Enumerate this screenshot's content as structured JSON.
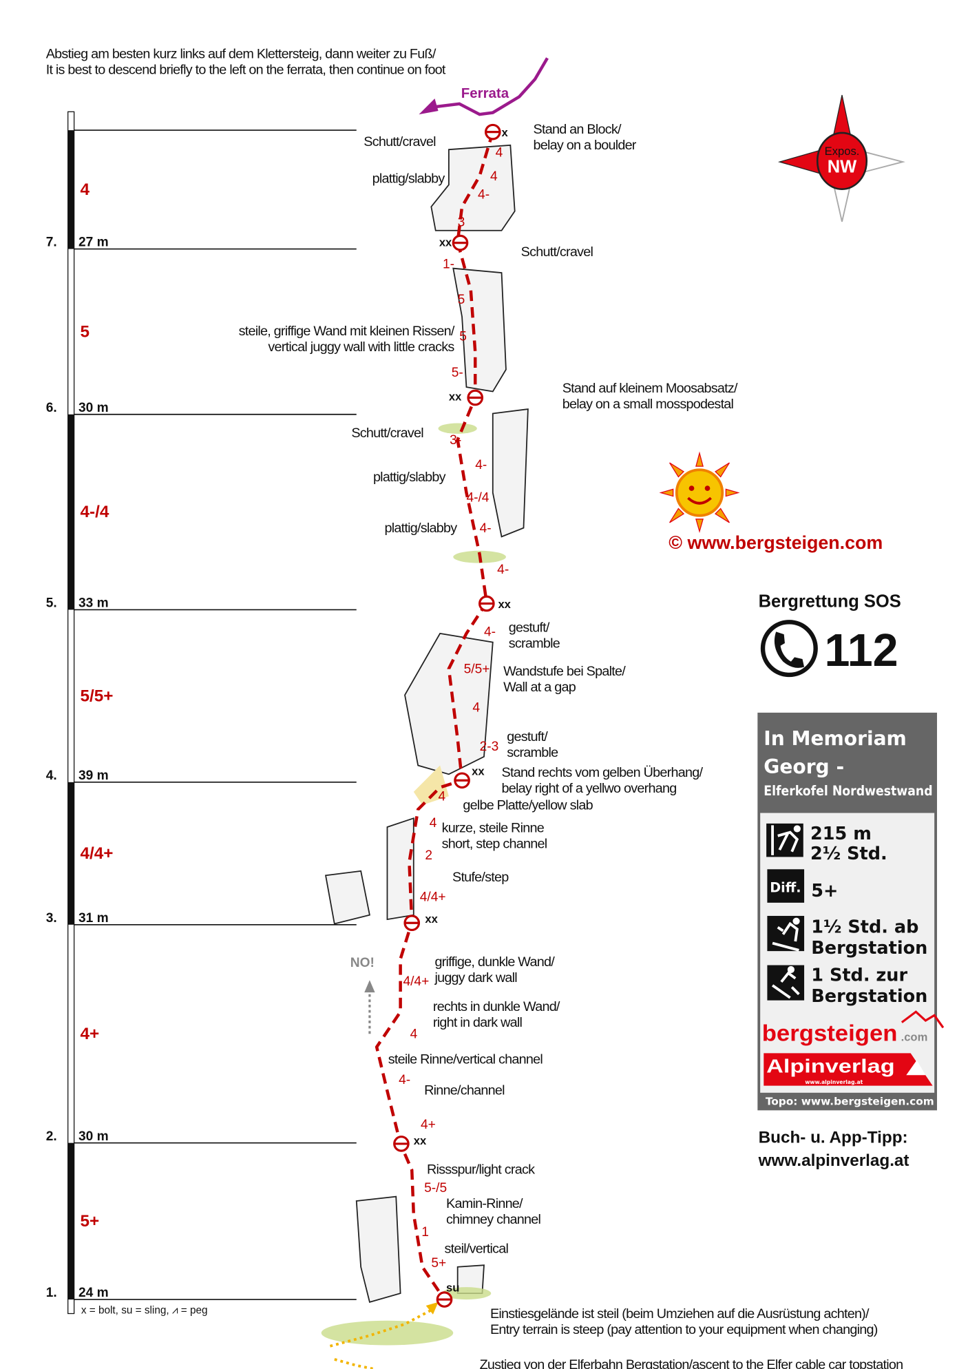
{
  "top_note": [
    "Abstieg am besten kurz links auf dem Klettersteig, dann weiter zu Fuß/",
    "It is best to descend briefly to the left on the ferrata, then continue on foot"
  ],
  "ferrata_label": "Ferrata",
  "colors": {
    "route": "#c00000",
    "ferrata": "#9b1a8c",
    "compass": "#e30613",
    "box_header": "#666666",
    "box_body": "#f0f0f0",
    "moss": "#c9dc8a",
    "approach": "#f2b400"
  },
  "pitches": [
    {
      "number": "7.",
      "length": "27 m",
      "grade": "4"
    },
    {
      "number": "6.",
      "length": "30 m",
      "grade": "5"
    },
    {
      "number": "5.",
      "length": "33 m",
      "grade": "4-/4"
    },
    {
      "number": "4.",
      "length": "39 m",
      "grade": "5/5+"
    },
    {
      "number": "3.",
      "length": "31 m",
      "grade": "4/4+"
    },
    {
      "number": "2.",
      "length": "30 m",
      "grade": "4+"
    },
    {
      "number": "1.",
      "length": "24 m",
      "grade": "5+"
    }
  ],
  "route_grades": [
    "4",
    "4",
    "4-",
    "3",
    "1-",
    "5",
    "5",
    "5-",
    "3-",
    "4-",
    "4-/4",
    "4-",
    "4-",
    "4-",
    "5/5+",
    "4",
    "2-3",
    "4",
    "4",
    "2",
    "4/4+",
    "4/4+",
    "4",
    "4-",
    "4+",
    "5-/5",
    "1",
    "5+"
  ],
  "belay_labels": [
    "x",
    "xx",
    "xx",
    "xx",
    "xx",
    "xx",
    "xx",
    "su"
  ],
  "annotations": [
    [
      "Schutt/cravel"
    ],
    [
      "plattig/slabby"
    ],
    [
      "Stand an Block/",
      "belay on a boulder"
    ],
    [
      "Schutt/cravel"
    ],
    [
      "steile, griffige Wand mit kleinen Rissen/",
      "vertical juggy wall with little cracks"
    ],
    [
      "Stand auf kleinem Moosabsatz/",
      "belay on a small mosspodestal"
    ],
    [
      "Schutt/cravel"
    ],
    [
      "plattig/slabby"
    ],
    [
      "plattig/slabby"
    ],
    [
      "gestuft/",
      "scramble"
    ],
    [
      "Wandstufe bei Spalte/",
      "Wall at a gap"
    ],
    [
      "gestuft/",
      "scramble"
    ],
    [
      "Stand rechts vom gelben Überhang/",
      "belay right of a yellwo overhang"
    ],
    [
      "gelbe Platte/yellow slab"
    ],
    [
      "kurze, steile Rinne",
      "short, step channel"
    ],
    [
      "Stufe/step"
    ],
    [
      "griffige, dunkle Wand/",
      "juggy dark wall"
    ],
    [
      "rechts in dunkle Wand/",
      "right in dark wall"
    ],
    [
      "steile Rinne/vertical channel"
    ],
    [
      "Rinne/channel"
    ],
    [
      "Rissspur/light crack"
    ],
    [
      "Kamin-Rinne/",
      "chimney channel"
    ],
    [
      "steil/vertical"
    ],
    [
      "Einstiesgelände ist steil (beim Umziehen auf die Ausrüstung achten)/",
      "Entry terrain is steep (pay attention to your equipment when changing)"
    ],
    [
      "Zustieg von der Elferbahn Bergstation/ascent to the Elfer cable car topstation"
    ]
  ],
  "no_label": "NO!",
  "legend": "x = bolt, su = sling, ⩘ = peg",
  "compass": {
    "label": "Expos.",
    "direction": "NW"
  },
  "copyright": "©  www.bergsteigen.com",
  "sos": {
    "title": "Bergrettung SOS",
    "number": "112",
    "icon": "phone-icon"
  },
  "info_box": {
    "title_lines": [
      "In Memoriam",
      "Georg -"
    ],
    "subtitle": "Elferkofel Nordwestwand",
    "height": "215 m",
    "time": "2½ Std.",
    "diff_label": "Diff.",
    "difficulty": "5+",
    "approach": [
      "1½ Std. ab",
      "Bergstation"
    ],
    "descent": [
      "1 Std. zur",
      "Bergstation"
    ],
    "logo_bergsteigen": "bergsteigen",
    "logo_com": ".com",
    "logo_alpinverlag": "Alpinverlag",
    "logo_alpinverlag_url": "www.alpinverlag.at",
    "footer": "Topo: www.bergsteigen.com"
  },
  "book_tip": [
    "Buch- u. App-Tipp:",
    "www.alpinverlag.at"
  ]
}
